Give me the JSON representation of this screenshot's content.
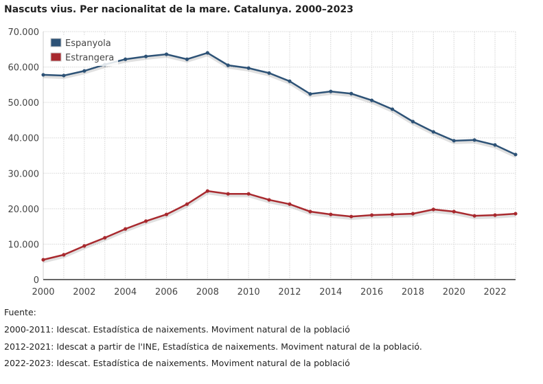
{
  "chart_data": {
    "type": "line",
    "title": "Nascuts vius. Per nacionalitat de la mare. Catalunya. 2000–2023",
    "x": [
      2000,
      2001,
      2002,
      2003,
      2004,
      2005,
      2006,
      2007,
      2008,
      2009,
      2010,
      2011,
      2012,
      2013,
      2014,
      2015,
      2016,
      2017,
      2018,
      2019,
      2020,
      2021,
      2022,
      2023
    ],
    "xticks": [
      "2000",
      "2002",
      "2004",
      "2006",
      "2008",
      "2010",
      "2012",
      "2014",
      "2016",
      "2018",
      "2020",
      "2022"
    ],
    "yticks": [
      "0",
      "10.000",
      "20.000",
      "30.000",
      "40.000",
      "50.000",
      "60.000",
      "70.000"
    ],
    "ylim": [
      0,
      70000
    ],
    "grid": true,
    "legend_placement": "top-left",
    "series": [
      {
        "name": "Espanyola",
        "color": "#2d5276",
        "values": [
          57800,
          57600,
          58900,
          60700,
          62200,
          63000,
          63600,
          62200,
          64000,
          60500,
          59700,
          58300,
          56000,
          52400,
          53100,
          52500,
          50600,
          48100,
          44600,
          41700,
          39200,
          39400,
          38000,
          35300
        ]
      },
      {
        "name": "Estrangera",
        "color": "#a8292e",
        "values": [
          5600,
          7000,
          9500,
          11800,
          14300,
          16500,
          18400,
          21300,
          25000,
          24200,
          24200,
          22500,
          21300,
          19200,
          18400,
          17800,
          18200,
          18400,
          18600,
          19800,
          19200,
          18000,
          18200,
          18600
        ]
      }
    ]
  },
  "sources": {
    "label": "Fuente:",
    "lines": [
      "2000-2011: Idescat. Estadística de naixements. Moviment natural de la població",
      "2012-2021: Idescat a partir de l'INE, Estadística de naixements. Moviment natural de la població.",
      "2022-2023: Idescat. Estadística de naixements. Moviment natural de la població"
    ]
  }
}
